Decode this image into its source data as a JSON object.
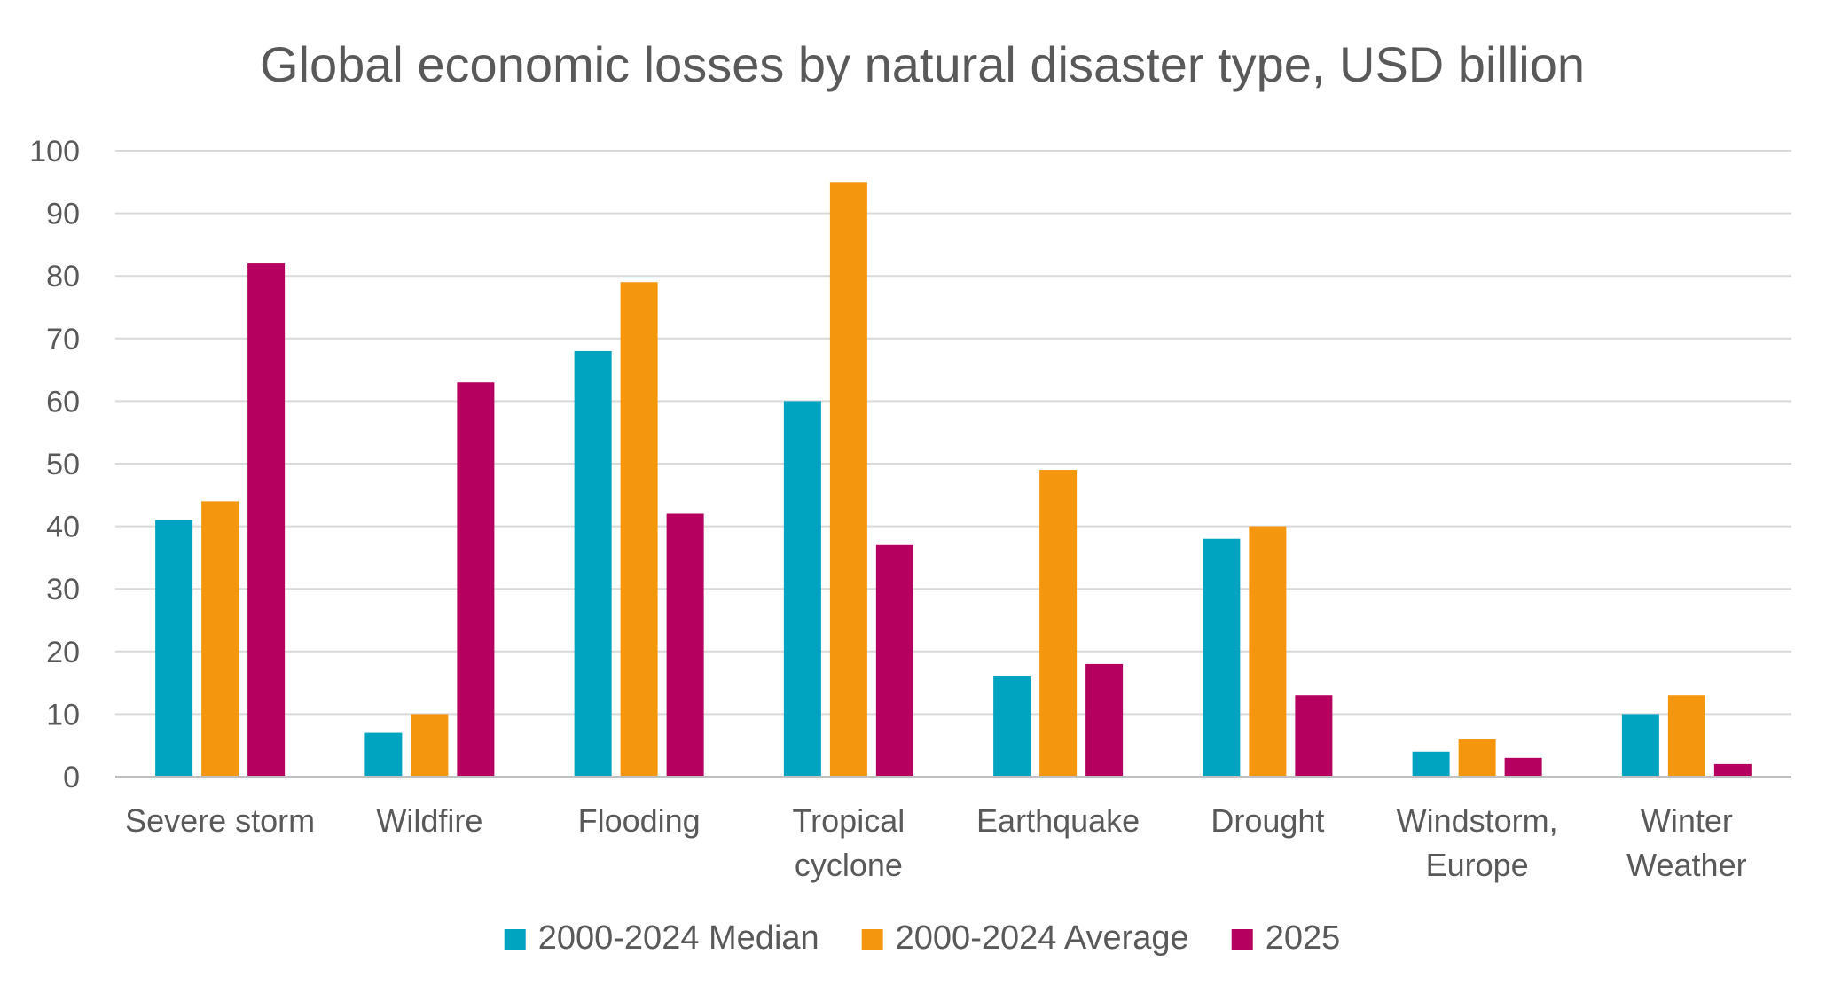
{
  "chart_data": {
    "type": "bar",
    "title": "Global economic losses by natural disaster type, USD billion",
    "xlabel": "",
    "ylabel": "",
    "ylim": [
      0,
      100
    ],
    "yticks": [
      0,
      10,
      20,
      30,
      40,
      50,
      60,
      70,
      80,
      90,
      100
    ],
    "grid": true,
    "legend_position": "bottom",
    "categories": [
      [
        "Severe storm"
      ],
      [
        "Wildfire"
      ],
      [
        "Flooding"
      ],
      [
        "Tropical",
        "cyclone"
      ],
      [
        "Earthquake"
      ],
      [
        "Drought"
      ],
      [
        "Windstorm,",
        "Europe"
      ],
      [
        "Winter",
        "Weather"
      ]
    ],
    "series": [
      {
        "name": "2000-2024 Median",
        "color": "#00a3c0",
        "values": [
          41,
          7,
          68,
          60,
          16,
          38,
          4,
          10
        ]
      },
      {
        "name": "2000-2024 Average",
        "color": "#f5960f",
        "values": [
          44,
          10,
          79,
          95,
          49,
          40,
          6,
          13
        ]
      },
      {
        "name": "2025",
        "color": "#b5005f",
        "values": [
          82,
          63,
          42,
          37,
          18,
          13,
          3,
          2
        ]
      }
    ]
  }
}
